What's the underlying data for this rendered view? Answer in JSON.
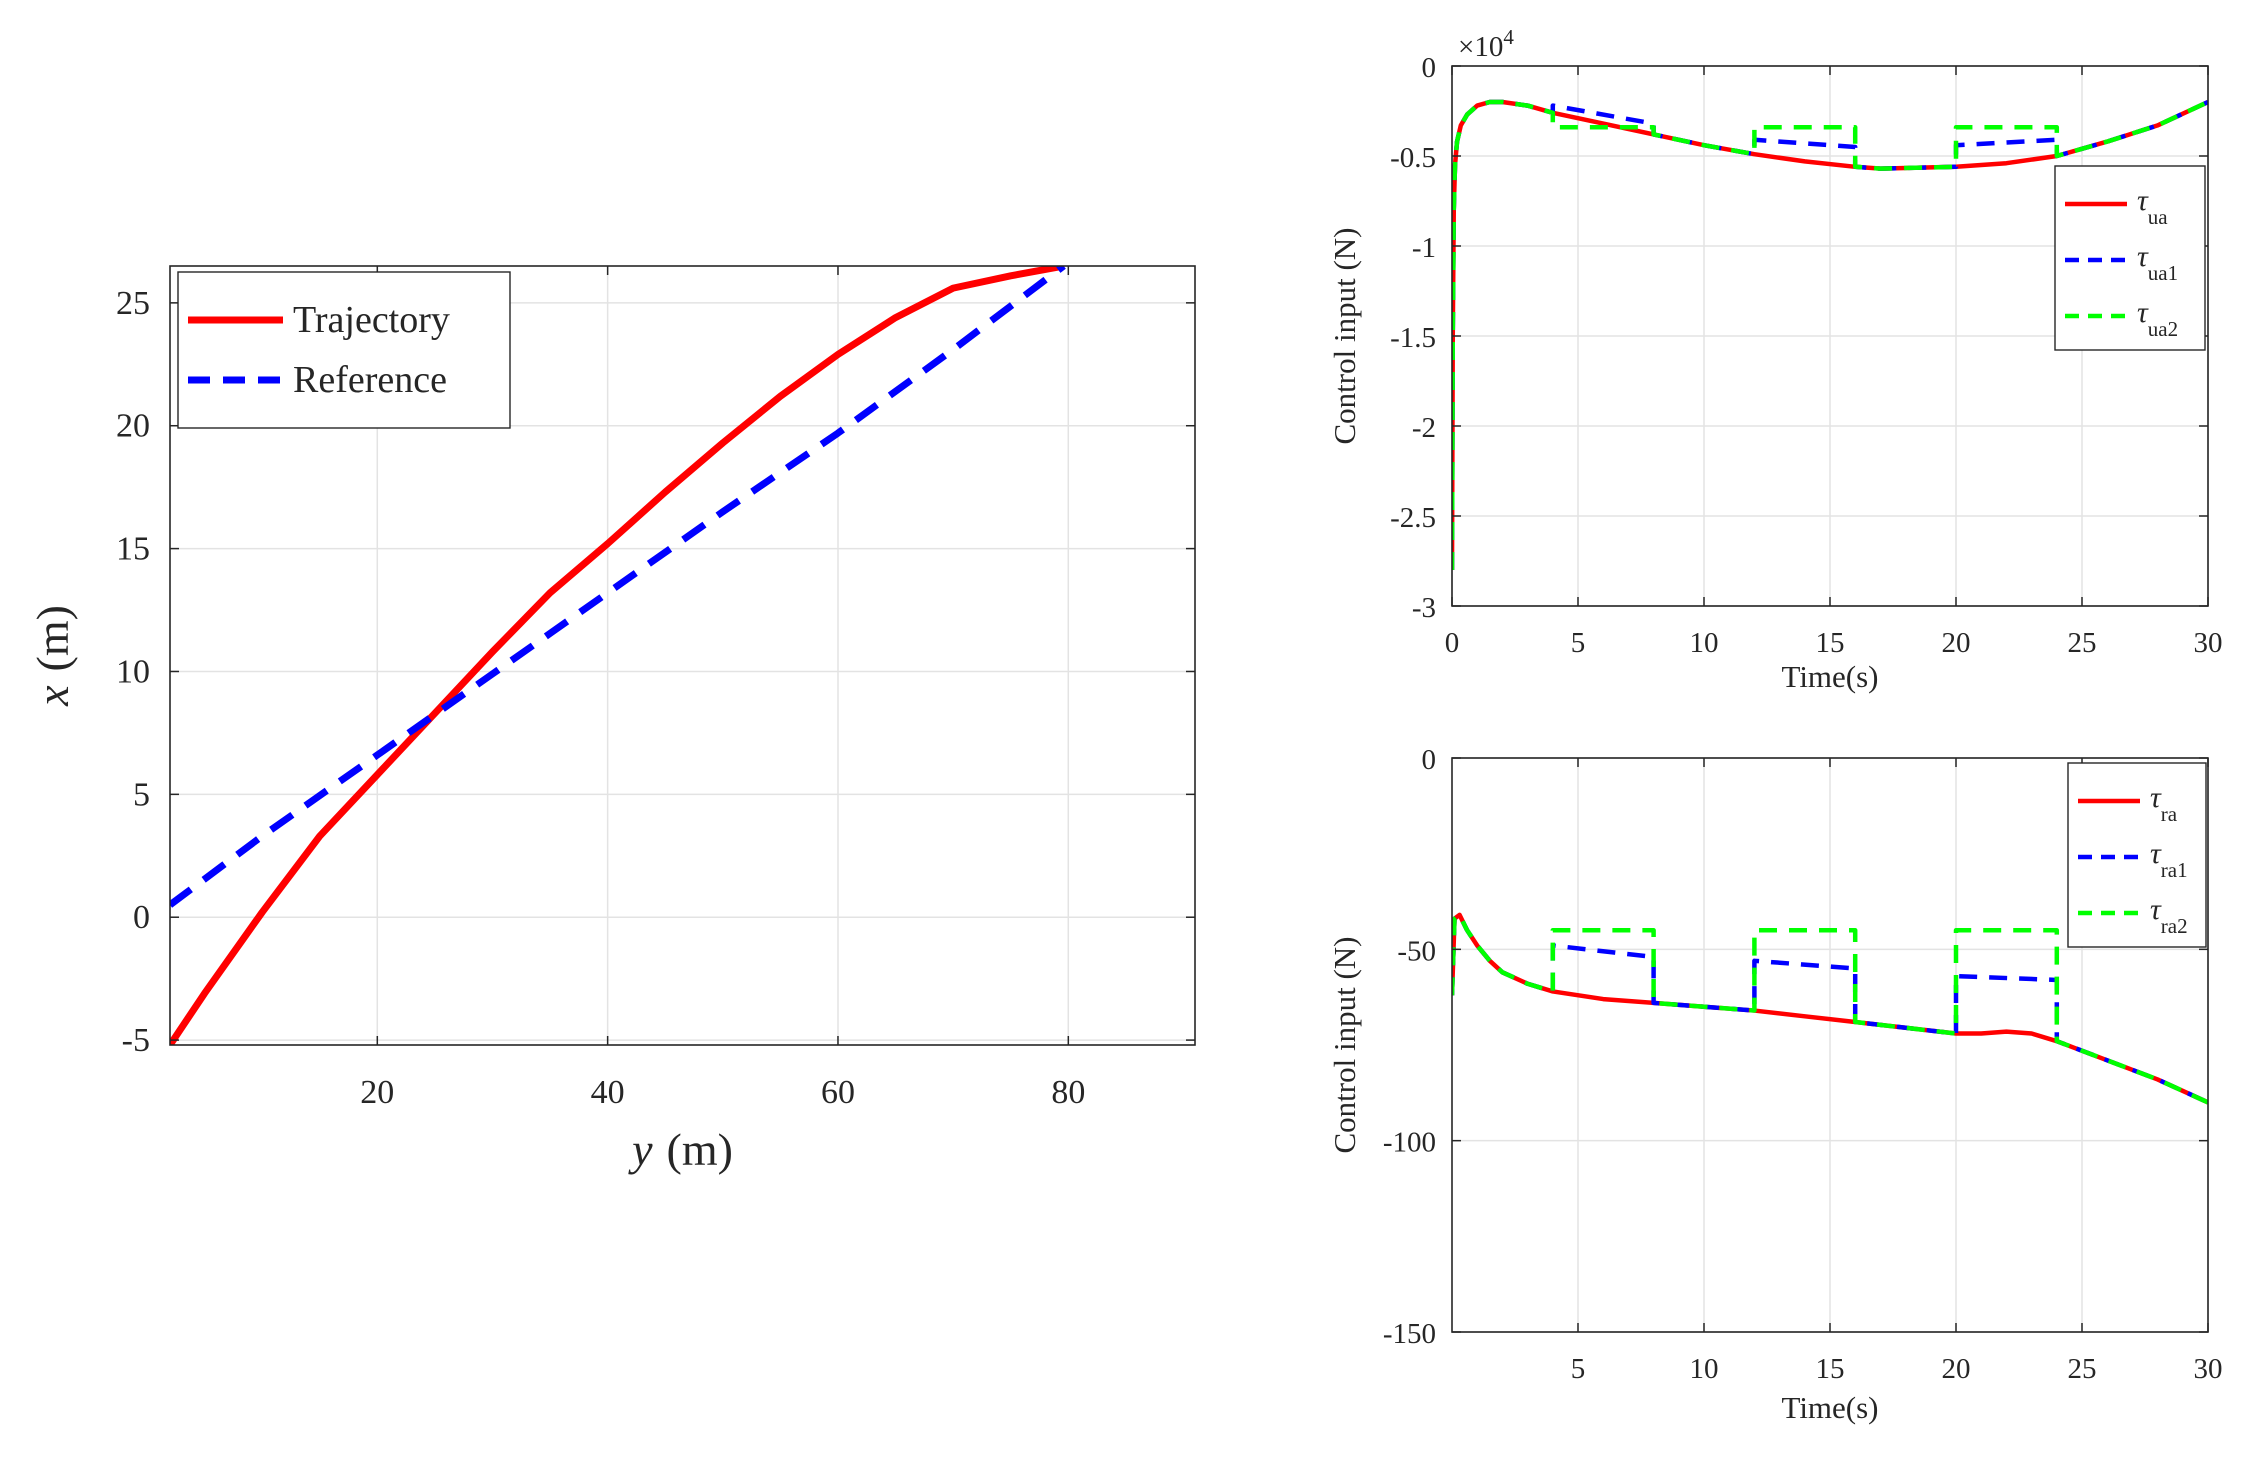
{
  "chart_data": [
    {
      "id": "trajectory",
      "type": "line",
      "title": "",
      "xlabel": "y",
      "xlabel_unit": "(m)",
      "ylabel": "x",
      "ylabel_unit": "(m)",
      "xlim": [
        2,
        91
      ],
      "ylim": [
        -5.2,
        26.5
      ],
      "xticks": [
        20,
        40,
        60,
        80
      ],
      "yticks": [
        -5,
        0,
        5,
        10,
        15,
        20,
        25
      ],
      "grid": true,
      "legend_position": "top-left",
      "series": [
        {
          "name": "Trajectory",
          "color": "#ff0000",
          "style": "solid",
          "x": [
            2,
            5,
            10,
            15,
            20,
            25,
            30,
            35,
            40,
            45,
            50,
            55,
            60,
            65,
            70,
            75,
            79.6
          ],
          "y": [
            -5.2,
            -3.1,
            0.2,
            3.3,
            5.8,
            8.3,
            10.8,
            13.2,
            15.2,
            17.3,
            19.3,
            21.2,
            22.9,
            24.4,
            25.6,
            26.1,
            26.5
          ]
        },
        {
          "name": "Reference",
          "color": "#0000ff",
          "style": "dashed",
          "x": [
            2,
            10,
            20,
            30,
            40,
            50,
            60,
            70,
            79.6
          ],
          "y": [
            0.5,
            3.3,
            6.6,
            9.9,
            13.2,
            16.5,
            19.7,
            23.1,
            26.5
          ]
        }
      ]
    },
    {
      "id": "surge-input",
      "type": "line",
      "title": "",
      "xlabel": "Time(s)",
      "ylabel": "Control input (N)",
      "exponent_label": "×10",
      "exponent_power": "4",
      "xlim": [
        0,
        30
      ],
      "ylim": [
        -3,
        0
      ],
      "xticks": [
        0,
        5,
        10,
        15,
        20,
        25,
        30
      ],
      "yticks": [
        0,
        -0.5,
        -1,
        -1.5,
        -2,
        -2.5,
        -3
      ],
      "ytick_labels": [
        "0",
        "-0.5",
        "-1",
        "-1.5",
        "-2",
        "-2.5",
        "-3"
      ],
      "grid": true,
      "legend_position": "top-right",
      "series": [
        {
          "name": "τ",
          "sub": "ua",
          "color": "#ff0000",
          "style": "solid",
          "x": [
            0,
            0.03,
            0.07,
            0.12,
            0.2,
            0.35,
            0.6,
            1,
            1.5,
            2,
            3,
            4,
            6,
            8,
            10,
            12,
            14,
            16,
            17,
            20,
            22,
            24,
            26,
            28,
            30
          ],
          "y": [
            -2.8,
            -1.5,
            -0.8,
            -0.55,
            -0.42,
            -0.33,
            -0.27,
            -0.22,
            -0.2,
            -0.2,
            -0.22,
            -0.26,
            -0.32,
            -0.38,
            -0.44,
            -0.49,
            -0.53,
            -0.56,
            -0.57,
            -0.56,
            -0.54,
            -0.5,
            -0.42,
            -0.33,
            -0.2
          ]
        },
        {
          "name": "τ",
          "sub": "ua1",
          "color": "#0000ff",
          "style": "dashed",
          "x": [
            0,
            0.03,
            0.07,
            0.12,
            0.2,
            0.35,
            0.6,
            1,
            1.5,
            2,
            3,
            4,
            4,
            8,
            8,
            10,
            12,
            12,
            16,
            16,
            17,
            20,
            20,
            24,
            24,
            26,
            28,
            30
          ],
          "y": [
            -2.8,
            -1.5,
            -0.8,
            -0.55,
            -0.42,
            -0.33,
            -0.27,
            -0.22,
            -0.2,
            -0.2,
            -0.22,
            -0.26,
            -0.22,
            -0.32,
            -0.38,
            -0.44,
            -0.49,
            -0.41,
            -0.45,
            -0.56,
            -0.57,
            -0.56,
            -0.44,
            -0.41,
            -0.5,
            -0.42,
            -0.33,
            -0.2
          ]
        },
        {
          "name": "τ",
          "sub": "ua2",
          "color": "#00ff00",
          "style": "dashed",
          "x": [
            0,
            0.03,
            0.07,
            0.12,
            0.2,
            0.35,
            0.6,
            1,
            1.5,
            2,
            3,
            4,
            4,
            8,
            8,
            10,
            12,
            12,
            16,
            16,
            17,
            20,
            20,
            24,
            24,
            26,
            28,
            30
          ],
          "y": [
            -2.8,
            -1.5,
            -0.8,
            -0.55,
            -0.42,
            -0.33,
            -0.27,
            -0.22,
            -0.2,
            -0.2,
            -0.22,
            -0.26,
            -0.34,
            -0.34,
            -0.38,
            -0.44,
            -0.49,
            -0.34,
            -0.34,
            -0.56,
            -0.57,
            -0.56,
            -0.34,
            -0.34,
            -0.5,
            -0.42,
            -0.33,
            -0.2
          ]
        }
      ]
    },
    {
      "id": "yaw-input",
      "type": "line",
      "title": "",
      "xlabel": "Time(s)",
      "ylabel": "Control input (N)",
      "xlim": [
        0,
        30
      ],
      "ylim": [
        -150,
        0
      ],
      "xticks": [
        5,
        10,
        15,
        20,
        25,
        30
      ],
      "yticks": [
        0,
        -50,
        -100,
        -150
      ],
      "ytick_labels": [
        "0",
        "-50",
        "-100",
        "-150"
      ],
      "grid": true,
      "legend_position": "top-right",
      "series": [
        {
          "name": "τ",
          "sub": "ra",
          "color": "#ff0000",
          "style": "solid",
          "x": [
            0,
            0.1,
            0.3,
            0.6,
            1,
            1.5,
            2,
            3,
            4,
            6,
            8,
            10,
            12,
            14,
            16,
            18,
            20,
            21,
            22,
            23,
            24,
            26,
            28,
            30
          ],
          "y": [
            -62,
            -42,
            -41,
            -45,
            -49,
            -53,
            -56,
            -59,
            -61,
            -63,
            -64,
            -65,
            -66,
            -67.5,
            -69,
            -70.5,
            -72,
            -72,
            -71.5,
            -72,
            -74,
            -79,
            -84,
            -90
          ]
        },
        {
          "name": "τ",
          "sub": "ra1",
          "color": "#0000ff",
          "style": "dashed",
          "x": [
            0,
            0.1,
            0.3,
            0.6,
            1,
            1.5,
            2,
            3,
            4,
            4,
            8,
            8,
            10,
            12,
            12,
            16,
            16,
            18,
            20,
            20,
            24,
            24,
            26,
            28,
            30
          ],
          "y": [
            -62,
            -42,
            -41,
            -45,
            -49,
            -53,
            -56,
            -59,
            -61,
            -49,
            -52,
            -64,
            -65,
            -66,
            -53,
            -55,
            -69,
            -70.5,
            -72,
            -57,
            -58,
            -74,
            -79,
            -84,
            -90
          ]
        },
        {
          "name": "τ",
          "sub": "ra2",
          "color": "#00ff00",
          "style": "dashed",
          "x": [
            0,
            0.1,
            0.3,
            0.6,
            1,
            1.5,
            2,
            3,
            4,
            4,
            8,
            8,
            10,
            12,
            12,
            16,
            16,
            18,
            20,
            20,
            24,
            24,
            26,
            28,
            30
          ],
          "y": [
            -62,
            -42,
            -41,
            -45,
            -49,
            -53,
            -56,
            -59,
            -61,
            -45,
            -45,
            -64,
            -65,
            -66,
            -45,
            -45,
            -69,
            -70.5,
            -72,
            -45,
            -45,
            -74,
            -79,
            -84,
            -90
          ]
        }
      ]
    }
  ]
}
